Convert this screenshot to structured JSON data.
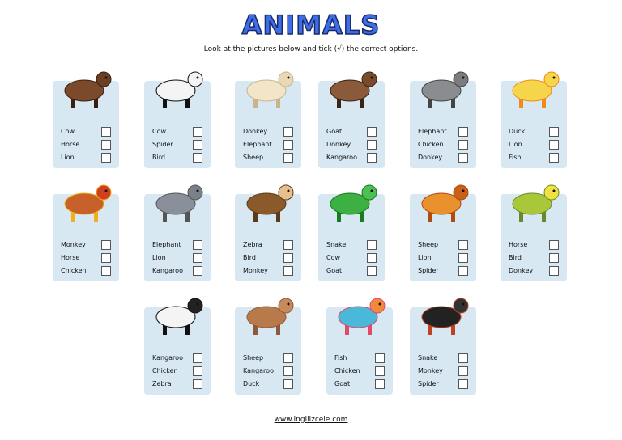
{
  "title": "ANIMALS",
  "instruction": "Look at the pictures below and tick (√) the correct options.",
  "cards": [
    {
      "options": [
        "Cow",
        "Horse",
        "Lion"
      ]
    },
    {
      "options": [
        "Cow",
        "Spider",
        "Bird"
      ]
    },
    {
      "options": [
        "Donkey",
        "Elephant",
        "Sheep"
      ]
    },
    {
      "options": [
        "Goat",
        "Donkey",
        "Kangaroo"
      ]
    },
    {
      "options": [
        "Elephant",
        "Chicken",
        "Donkey"
      ]
    },
    {
      "options": [
        "Duck",
        "Lion",
        "Fish"
      ]
    },
    {
      "options": [
        "Monkey",
        "Horse",
        "Chicken"
      ]
    },
    {
      "options": [
        "Elephant",
        "Lion",
        "Kangaroo"
      ]
    },
    {
      "options": [
        "Zebra",
        "Bird",
        "Monkey"
      ]
    },
    {
      "options": [
        "Snake",
        "Cow",
        "Goat"
      ]
    },
    {
      "options": [
        "Sheep",
        "Lion",
        "Spider"
      ]
    },
    {
      "options": [
        "Horse",
        "Bird",
        "Donkey"
      ]
    },
    {
      "options": [
        "Kangaroo",
        "Chicken",
        "Zebra"
      ]
    },
    {
      "options": [
        "Sheep",
        "Kangaroo",
        "Duck"
      ]
    },
    {
      "options": [
        "Fish",
        "Chicken",
        "Goat"
      ]
    },
    {
      "options": [
        "Snake",
        "Monkey",
        "Spider"
      ]
    }
  ],
  "footer": "www.ingilizcele.com"
}
